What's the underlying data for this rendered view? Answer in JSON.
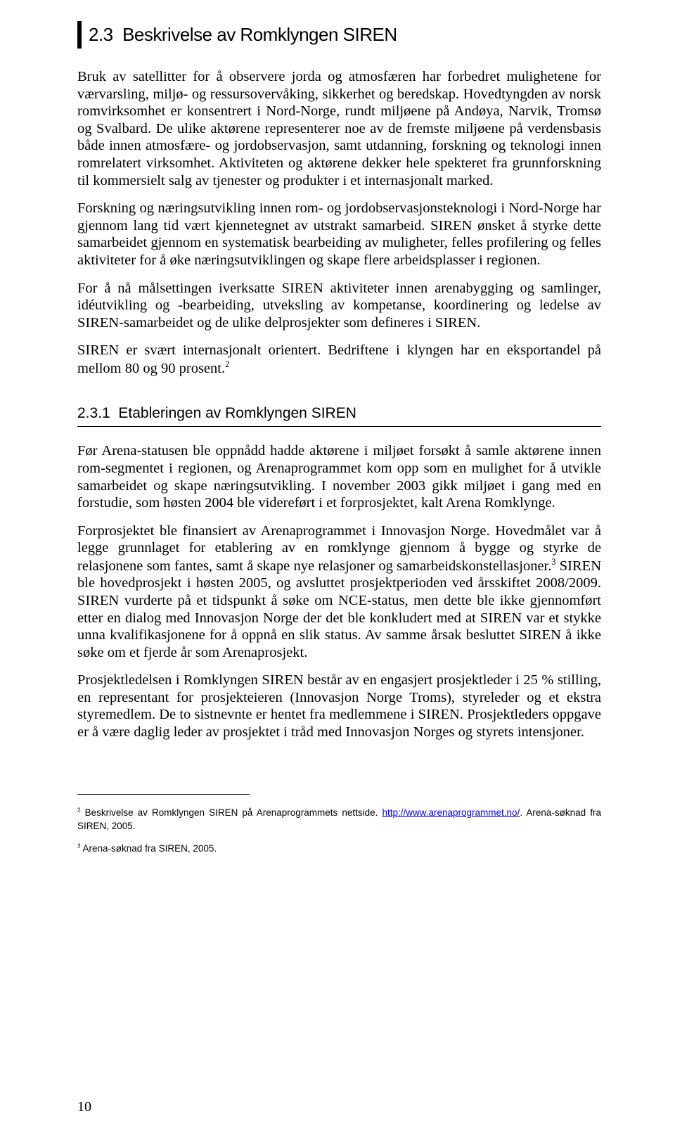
{
  "heading2": {
    "text": "2.3  Beskrivelse av Romklyngen SIREN"
  },
  "paras_a": [
    "Bruk av satellitter for å observere jorda og atmosfæren har forbedret mulighetene for værvarsling, miljø- og ressursovervåking, sikkerhet og beredskap. Hovedtyngden av norsk romvirksomhet er konsentrert i Nord-Norge, rundt miljøene på Andøya, Narvik, Tromsø og Svalbard. De ulike aktørene representerer noe av de fremste miljøene på verdensbasis både innen atmosfære- og jordobservasjon, samt utdanning, forskning og teknologi innen romrelatert virksomhet. Aktiviteten og aktørene dekker hele spekteret fra grunnforskning til kommersielt salg av tjenester og produkter i et internasjonalt marked.",
    "Forskning og næringsutvikling innen rom- og jordobservasjonsteknologi i Nord-Norge har gjennom lang tid vært kjennetegnet av utstrakt samarbeid. SIREN ønsket å styrke dette samarbeidet gjennom en systematisk bearbeiding av muligheter, felles profilering og felles aktiviteter for å øke næringsutviklingen og skape flere arbeidsplasser i regionen.",
    "For å nå målsettingen iverksatte SIREN aktiviteter innen arenabygging og samlinger, idéutvikling og -bearbeiding, utveksling av kompetanse, koordinering og ledelse av SIREN-samarbeidet og de ulike delprosjekter som defineres i SIREN."
  ],
  "para_a_last": {
    "pre": "SIREN er svært internasjonalt orientert. Bedriftene i klyngen har en eksportandel på mellom 80 og 90 prosent.",
    "sup": "2"
  },
  "heading3": {
    "text": "2.3.1  Etableringen av Romklyngen SIREN"
  },
  "paras_b": [
    "Før Arena-statusen ble oppnådd hadde aktørene i miljøet forsøkt å samle aktørene innen rom-segmentet i regionen, og Arenaprogrammet kom opp som en mulighet for å utvikle samarbeidet og skape næringsutvikling. I november 2003 gikk miljøet i gang med en forstudie, som høsten 2004 ble videreført i et forprosjektet, kalt Arena Romklynge."
  ],
  "para_b_fn3": {
    "pre": "Forprosjektet ble finansiert av Arenaprogrammet i Innovasjon Norge. Hovedmålet var å legge grunnlaget for etablering av en romklynge gjennom å bygge og styrke de relasjonene som fantes, samt å skape nye relasjoner og samarbeidskonstellasjoner.",
    "sup": "3",
    "post": " SIREN ble hovedprosjekt i høsten 2005, og avsluttet prosjektperioden ved årsskiftet 2008/2009. SIREN vurderte på et tidspunkt å søke om NCE-status, men dette ble ikke gjennomført etter en dialog med Innovasjon Norge der det ble konkludert med at SIREN var et stykke unna kvalifikasjonene for å oppnå en slik status. Av samme årsak besluttet SIREN å ikke søke om et fjerde år som Arenaprosjekt."
  },
  "paras_b2": [
    "Prosjektledelsen i Romklyngen SIREN består av en engasjert prosjektleder i 25 % stilling, en representant for prosjekteieren (Innovasjon Norge Troms), styreleder og et ekstra styremedlem. De to sistnevnte er hentet fra medlemmene i SIREN. Prosjektleders oppgave er å være daglig leder av prosjektet i tråd med Innovasjon Norges og styrets intensjoner."
  ],
  "footnotes": {
    "fn2": {
      "num": "2",
      "pre": " Beskrivelse av Romklyngen SIREN på Arenaprogrammets nettside. ",
      "link": "http://www.arenaprogrammet.no/",
      "post": ". Arena-søknad fra SIREN, 2005."
    },
    "fn3": {
      "num": "3",
      "text": " Arena-søknad fra SIREN, 2005."
    }
  },
  "pageNumber": "10"
}
